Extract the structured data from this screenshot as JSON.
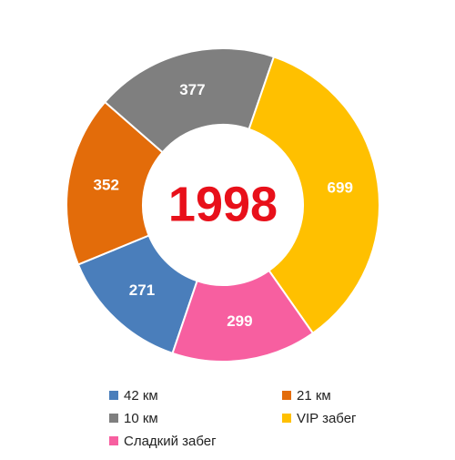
{
  "chart_data": {
    "type": "donut",
    "center_text": "1998",
    "categories": [
      "42 км",
      "21 км",
      "10 км",
      "VIP забег",
      "Сладкий забег"
    ],
    "values": [
      271,
      352,
      377,
      699,
      299
    ],
    "colors": [
      "#4a7ebb",
      "#e36c0a",
      "#7f7f7f",
      "#ffc000",
      "#f75fa0"
    ],
    "legend": "bottom"
  }
}
